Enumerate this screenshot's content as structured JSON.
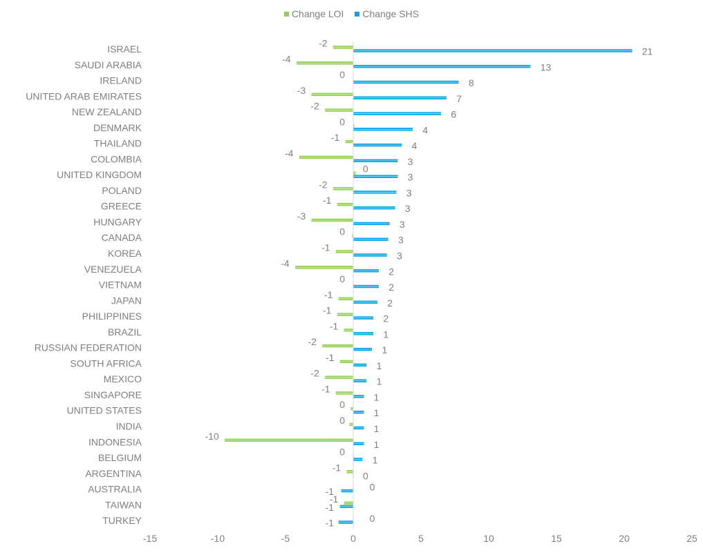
{
  "legend": {
    "position": "top-center",
    "items": [
      {
        "name": "Change LOI",
        "color": "#92d050"
      },
      {
        "name": "Change SHS",
        "color": "#00a5e3"
      }
    ]
  },
  "chart_data": {
    "type": "bar",
    "orientation": "horizontal",
    "title": "",
    "xlabel": "",
    "ylabel": "",
    "xlim": [
      -15,
      25
    ],
    "xticks": [
      -15,
      -10,
      -5,
      0,
      5,
      10,
      15,
      20,
      25
    ],
    "grid": false,
    "categories": [
      "ISRAEL",
      "SAUDI ARABIA",
      "IRELAND",
      "UNITED ARAB EMIRATES",
      "NEW ZEALAND",
      "DENMARK",
      "THAILAND",
      "COLOMBIA",
      "UNITED KINGDOM",
      "POLAND",
      "GREECE",
      "HUNGARY",
      "CANADA",
      "KOREA",
      "VENEZUELA",
      "VIETNAM",
      "JAPAN",
      "PHILIPPINES",
      "BRAZIL",
      "RUSSIAN FEDERATION",
      "SOUTH AFRICA",
      "MEXICO",
      "SINGAPORE",
      "UNITED STATES",
      "INDIA",
      "INDONESIA",
      "BELGIUM",
      "ARGENTINA",
      "AUSTRALIA",
      "TAIWAN",
      "TURKEY"
    ],
    "series": [
      {
        "name": "Change LOI",
        "color": "#92d050",
        "values": [
          -1.5,
          -4.2,
          0,
          -3.1,
          -2.1,
          0.1,
          -0.6,
          -4,
          0.2,
          -1.5,
          -1.2,
          -3.1,
          -0.1,
          -1.3,
          -4.3,
          0,
          -1.1,
          -1.2,
          -0.7,
          -2.3,
          -1,
          -2.1,
          -1.3,
          -0.2,
          -0.3,
          -9.5,
          0,
          -0.5,
          0,
          -0.7,
          0
        ],
        "labels": [
          "-2",
          "-4",
          "0",
          "-3",
          "-2",
          "0",
          "-1",
          "-4",
          "0",
          "-2",
          "-1",
          "-3",
          "0",
          "-1",
          "-4",
          "0",
          "-1",
          "-1",
          "-1",
          "-2",
          "-1",
          "-2",
          "-1",
          "0",
          "0",
          "-10",
          "0",
          "-1",
          "",
          "-1",
          ""
        ]
      },
      {
        "name": "Change SHS",
        "color": "#00a5e3",
        "values": [
          20.6,
          13.1,
          7.8,
          6.9,
          6.5,
          4.4,
          3.6,
          3.3,
          3.3,
          3.2,
          3.1,
          2.7,
          2.6,
          2.5,
          1.9,
          1.9,
          1.8,
          1.5,
          1.5,
          1.4,
          1,
          1,
          0.8,
          0.8,
          0.8,
          0.8,
          0.7,
          0,
          -0.9,
          -1,
          -1.1
        ],
        "labels": [
          "21",
          "13",
          "8",
          "7",
          "6",
          "4",
          "4",
          "3",
          "3",
          "3",
          "3",
          "3",
          "3",
          "3",
          "2",
          "2",
          "2",
          "2",
          "1",
          "1",
          "1",
          "1",
          "1",
          "1",
          "1",
          "1",
          "1",
          "0",
          "-1",
          "-1",
          "-1"
        ]
      }
    ],
    "extra_labels": [
      {
        "text": "0",
        "category": "AUSTRALIA",
        "value": 0.8
      },
      {
        "text": "0",
        "category": "TURKEY",
        "value": 0.8
      }
    ]
  }
}
